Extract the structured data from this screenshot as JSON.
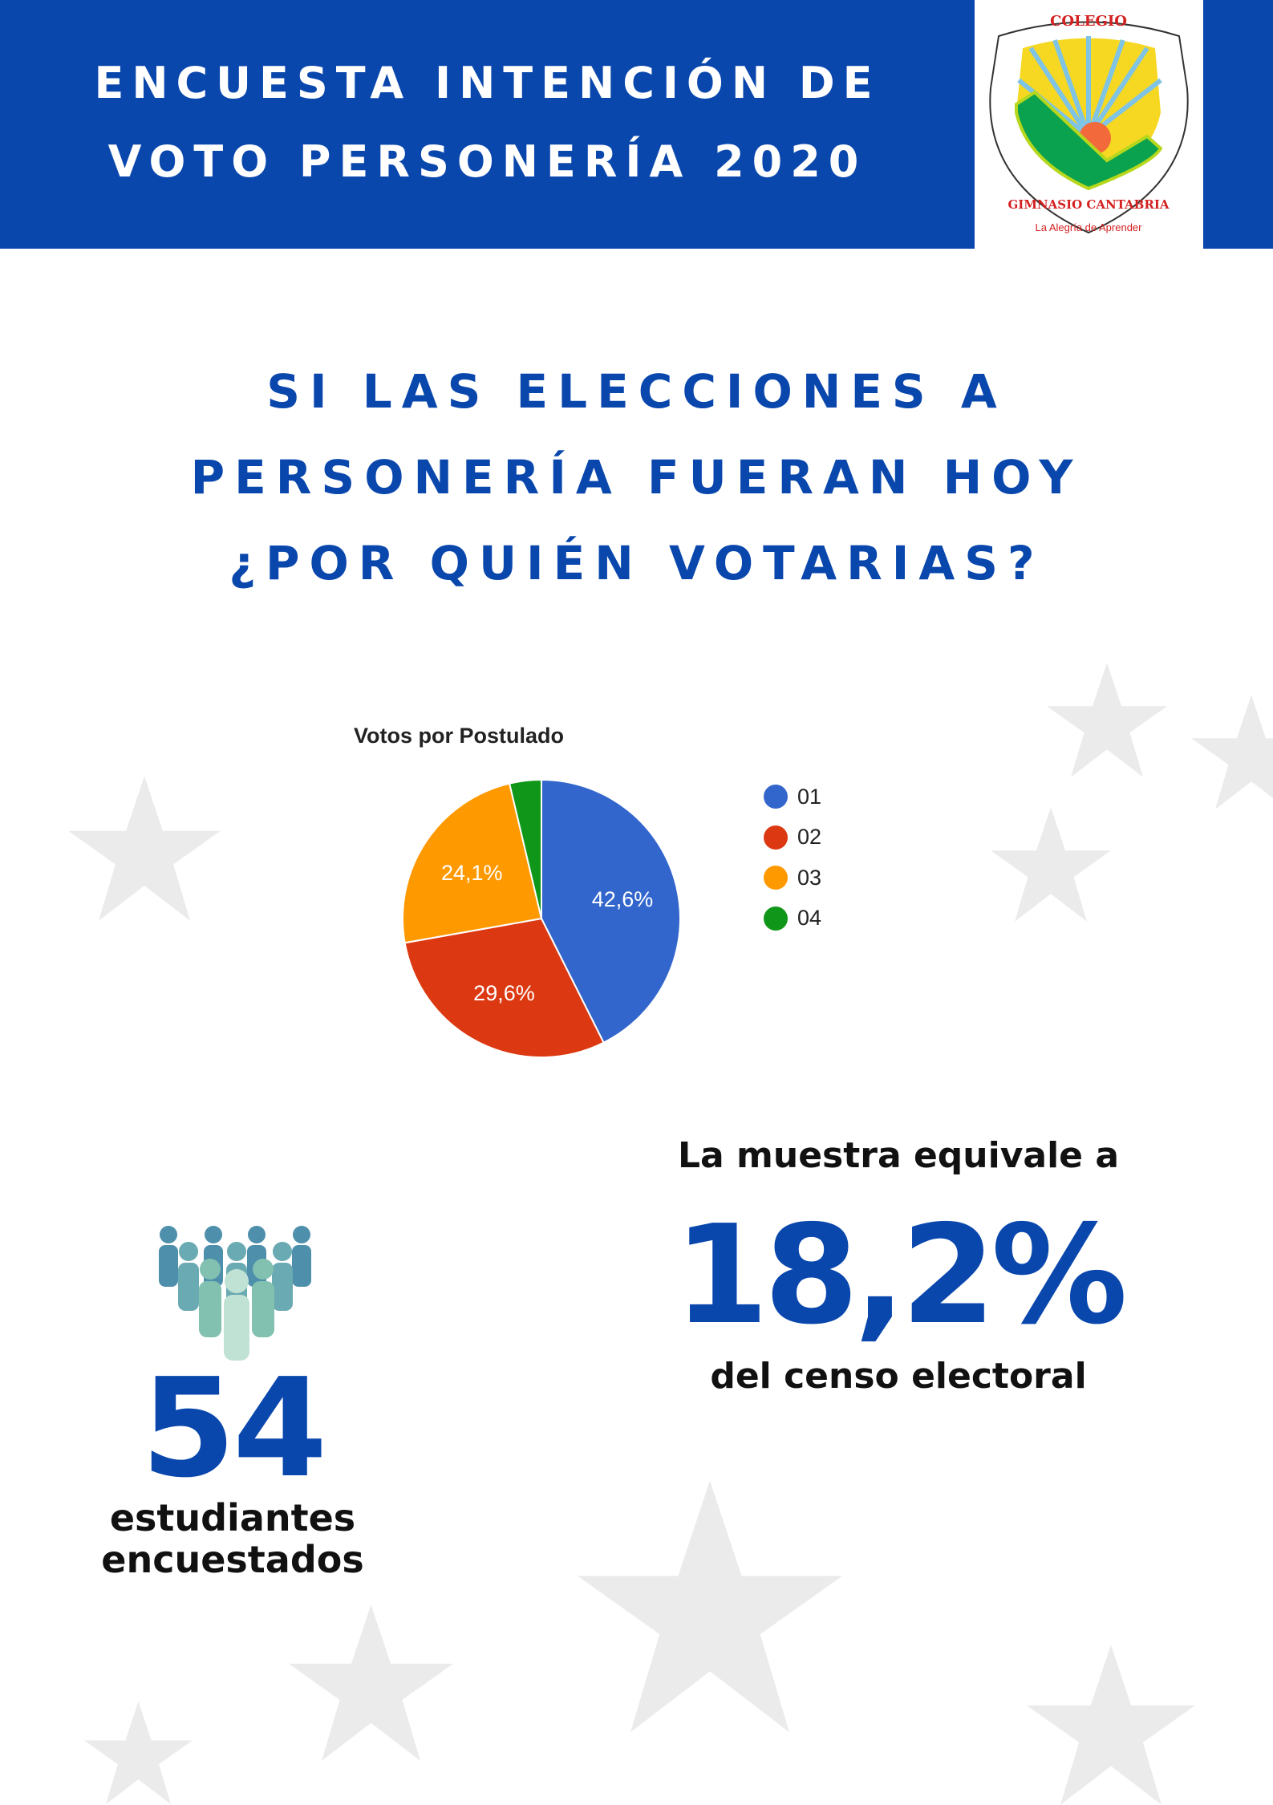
{
  "header": {
    "title_line1": "ENCUESTA INTENCIÓN DE",
    "title_line2": "VOTO PERSONERÍA 2020",
    "logo": {
      "top": "COLEGIO",
      "name": "GIMNASIO CANTABRIA",
      "motto": "La Alegría de Aprender"
    }
  },
  "question": {
    "line1": "SI LAS ELECCIONES A",
    "line2": "PERSONERÍA FUERAN HOY",
    "line3": "¿POR QUIÉN VOTARIAS?"
  },
  "chart_data": {
    "type": "pie",
    "title": "Votos por Postulado",
    "categories": [
      "01",
      "02",
      "03",
      "04"
    ],
    "values": [
      42.6,
      29.6,
      24.1,
      3.7
    ],
    "labels": [
      "42,6%",
      "29,6%",
      "24,1%",
      ""
    ],
    "colors": [
      "#3366cc",
      "#dc3912",
      "#ff9900",
      "#109618"
    ],
    "legend_position": "right"
  },
  "stats": {
    "sample_intro": "La muestra equivale a",
    "sample_percent": "18,2%",
    "sample_outro": "del censo electoral",
    "students_count": "54",
    "students_line1": "estudiantes",
    "students_line2": "encuestados"
  }
}
